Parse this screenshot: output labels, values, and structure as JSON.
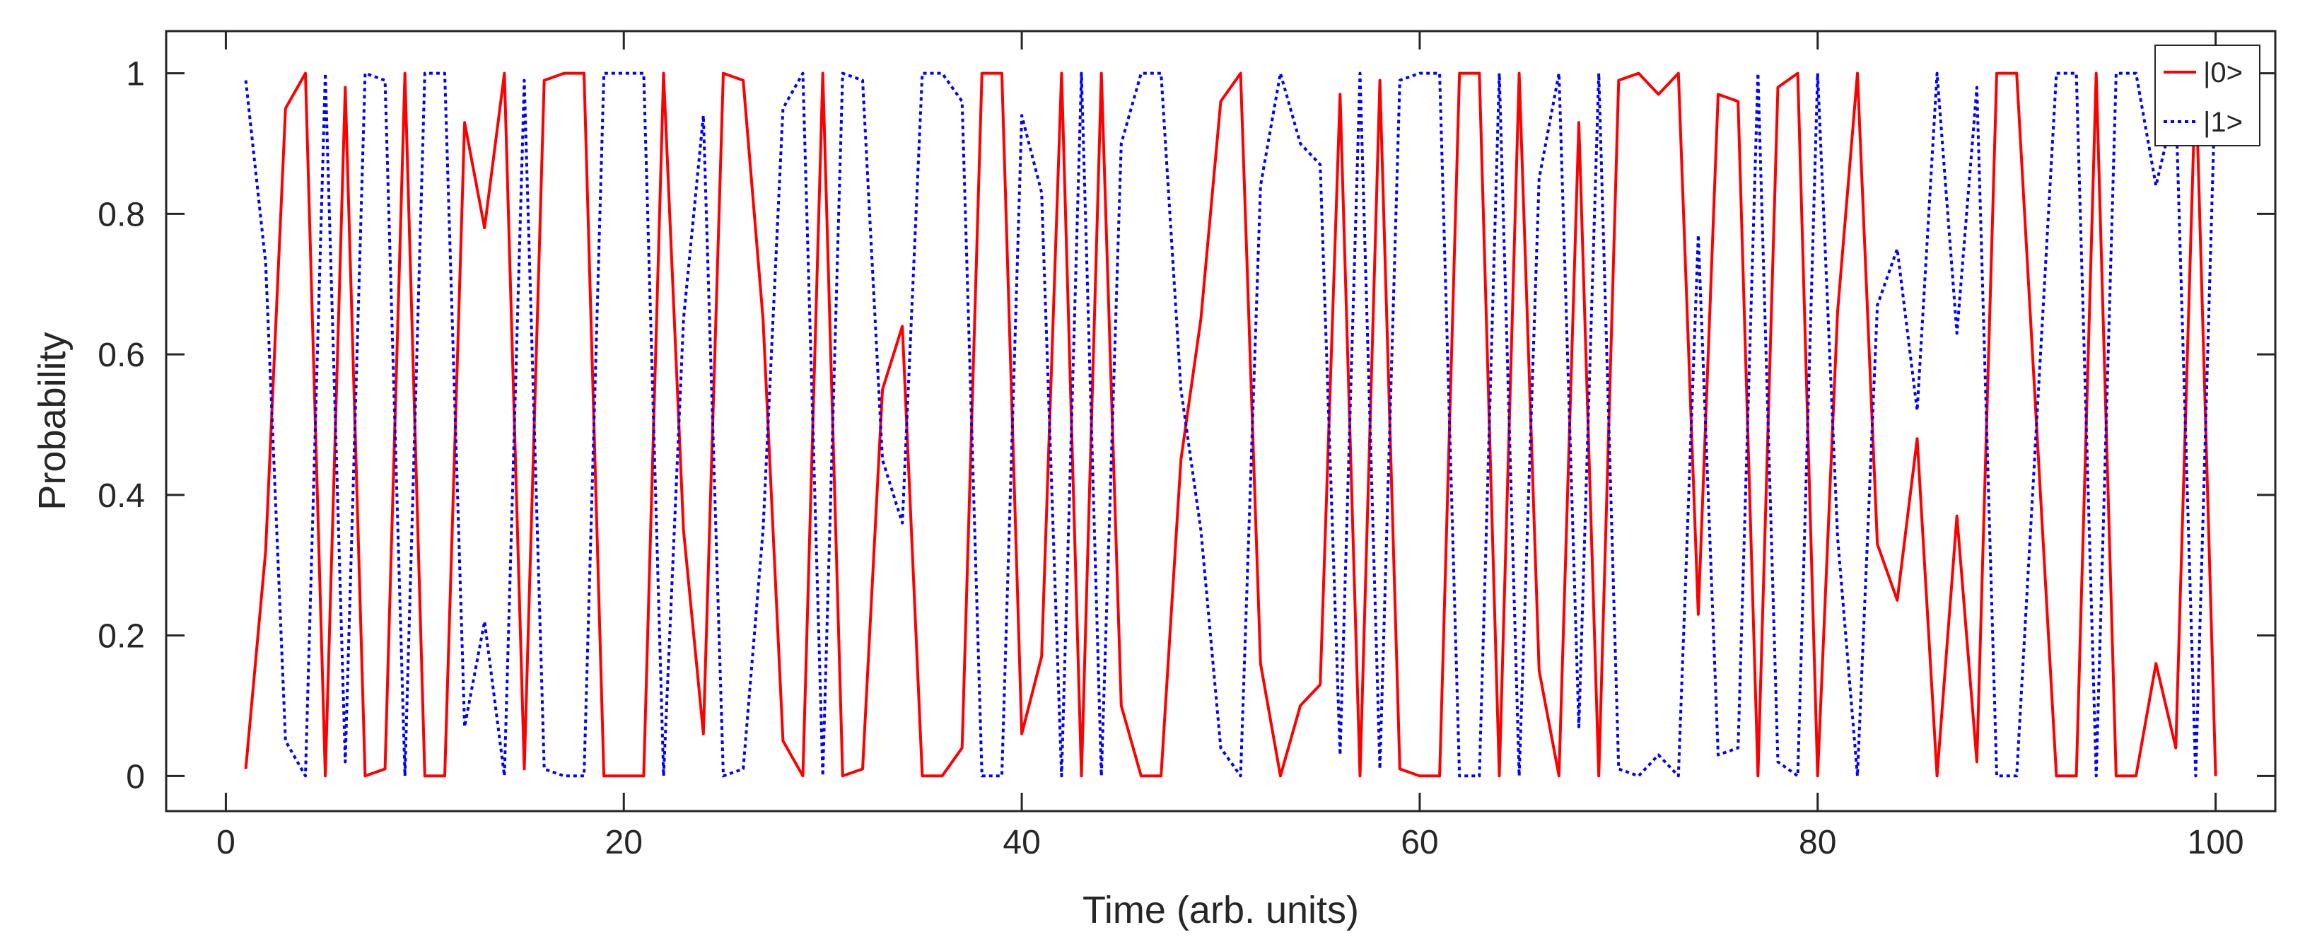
{
  "chart_data": {
    "type": "line",
    "xlabel": "Time (arb. units)",
    "ylabel": "Probability",
    "xlim": [
      -3,
      103
    ],
    "ylim": [
      -0.05,
      1.06
    ],
    "xticks": [
      0,
      20,
      40,
      60,
      80,
      100
    ],
    "yticks": [
      0,
      0.2,
      0.4,
      0.6,
      0.8,
      1
    ],
    "xtick_labels": [
      "0",
      "20",
      "40",
      "60",
      "80",
      "100"
    ],
    "ytick_labels": [
      "0",
      "0.2",
      "0.4",
      "0.6",
      "0.8",
      "1"
    ],
    "grid": false,
    "legend_position": "top-right",
    "colors": {
      "series_0": "#ff0000",
      "series_1": "#0000ff",
      "axes": "#262626"
    },
    "x": [
      1,
      2,
      3,
      4,
      5,
      6,
      7,
      8,
      9,
      10,
      11,
      12,
      13,
      14,
      15,
      16,
      17,
      18,
      19,
      20,
      21,
      22,
      23,
      24,
      25,
      26,
      27,
      28,
      29,
      30,
      31,
      32,
      33,
      34,
      35,
      36,
      37,
      38,
      39,
      40,
      41,
      42,
      43,
      44,
      45,
      46,
      47,
      48,
      49,
      50,
      51,
      52,
      53,
      54,
      55,
      56,
      57,
      58,
      59,
      60,
      61,
      62,
      63,
      64,
      65,
      66,
      67,
      68,
      69,
      70,
      71,
      72,
      73,
      74,
      75,
      76,
      77,
      78,
      79,
      80,
      81,
      82,
      83,
      84,
      85,
      86,
      87,
      88,
      89,
      90,
      91,
      92,
      93,
      94,
      95,
      96,
      97,
      98,
      99,
      100
    ],
    "series": [
      {
        "name": "|0>",
        "style": "solid",
        "values": [
          0.01,
          0.32,
          0.95,
          1.0,
          0.0,
          0.98,
          0.0,
          0.01,
          1.0,
          0.0,
          0.0,
          0.93,
          0.78,
          1.0,
          0.01,
          0.99,
          1.0,
          1.0,
          0.0,
          0.0,
          0.0,
          1.0,
          0.35,
          0.06,
          1.0,
          0.99,
          0.65,
          0.05,
          0.0,
          1.0,
          0.0,
          0.01,
          0.55,
          0.64,
          0.0,
          0.0,
          0.04,
          1.0,
          1.0,
          0.06,
          0.17,
          1.0,
          0.0,
          1.0,
          0.1,
          0.0,
          0.0,
          0.45,
          0.65,
          0.96,
          1.0,
          0.16,
          0.0,
          0.1,
          0.13,
          0.97,
          0.0,
          0.99,
          0.01,
          0.0,
          0.0,
          1.0,
          1.0,
          0.0,
          1.0,
          0.15,
          0.0,
          0.93,
          0.0,
          0.99,
          1.0,
          0.97,
          1.0,
          0.23,
          0.97,
          0.96,
          0.0,
          0.98,
          1.0,
          0.0,
          0.66,
          1.0,
          0.33,
          0.25,
          0.48,
          0.0,
          0.37,
          0.02,
          1.0,
          1.0,
          0.5,
          0.0,
          0.0,
          1.0,
          0.0,
          0.0,
          0.16,
          0.04,
          1.0,
          0.0
        ]
      },
      {
        "name": "|1>",
        "style": "dotted",
        "values": [
          0.99,
          0.73,
          0.05,
          0.0,
          1.0,
          0.02,
          1.0,
          0.99,
          0.0,
          1.0,
          1.0,
          0.07,
          0.22,
          0.0,
          0.99,
          0.01,
          0.0,
          0.0,
          1.0,
          1.0,
          1.0,
          0.0,
          0.65,
          0.94,
          0.0,
          0.01,
          0.35,
          0.95,
          1.0,
          0.0,
          1.0,
          0.99,
          0.45,
          0.36,
          1.0,
          1.0,
          0.96,
          0.0,
          0.0,
          0.94,
          0.83,
          0.0,
          1.0,
          0.0,
          0.9,
          1.0,
          1.0,
          0.55,
          0.35,
          0.04,
          0.0,
          0.84,
          1.0,
          0.9,
          0.87,
          0.03,
          1.0,
          0.01,
          0.99,
          1.0,
          1.0,
          0.0,
          0.0,
          1.0,
          0.0,
          0.85,
          1.0,
          0.07,
          1.0,
          0.01,
          0.0,
          0.03,
          0.0,
          0.77,
          0.03,
          0.04,
          1.0,
          0.02,
          0.0,
          1.0,
          0.34,
          0.0,
          0.67,
          0.75,
          0.52,
          1.0,
          0.63,
          0.98,
          0.0,
          0.0,
          0.5,
          1.0,
          1.0,
          0.0,
          1.0,
          1.0,
          0.84,
          0.96,
          0.0,
          1.0
        ]
      }
    ]
  }
}
